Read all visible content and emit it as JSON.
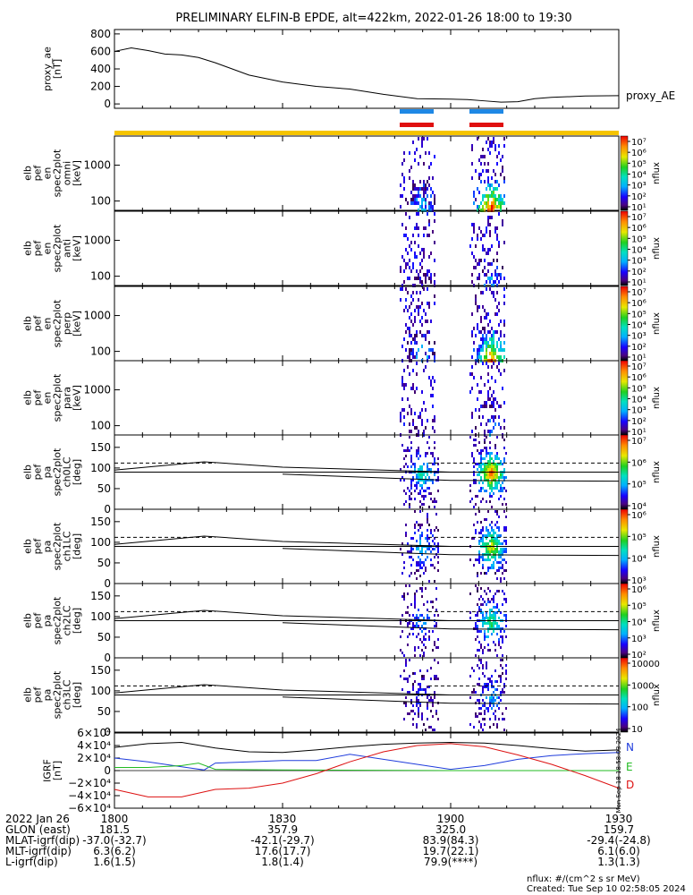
{
  "title": "PRELIMINARY ELFIN-B EPDE, alt=422km, 2022-01-26 18:00 to 19:30",
  "chart_data": [
    {
      "type": "line",
      "ylabel": [
        "proxy_ae",
        "[nT]"
      ],
      "legend": "proxy_AE",
      "yticks": [
        "800",
        "600",
        "400",
        "200",
        "0"
      ],
      "ylim": [
        -50,
        850
      ],
      "x_minutes": [
        0,
        3,
        6,
        9,
        12,
        15,
        18,
        24,
        30,
        36,
        42,
        48,
        54,
        60,
        63,
        66,
        69,
        72,
        75,
        78,
        84,
        90
      ],
      "values": [
        600,
        640,
        610,
        570,
        560,
        530,
        470,
        330,
        250,
        200,
        170,
        110,
        60,
        55,
        50,
        35,
        20,
        25,
        60,
        75,
        90,
        95
      ]
    },
    {
      "type": "heatmap",
      "ylabel": [
        "elb",
        "pef",
        "en",
        "spec2plot",
        "omni",
        "[keV]"
      ],
      "yticks": [
        "1000",
        "100"
      ],
      "ylim": [
        55,
        6500
      ],
      "yscale": "log",
      "colorbar": {
        "label": "nflux",
        "scale": "log",
        "ticks": [
          "10⁷",
          "10⁶",
          "10⁵",
          "10⁴",
          "10³",
          "10²",
          "10¹"
        ]
      }
    },
    {
      "type": "heatmap",
      "ylabel": [
        "elb",
        "pef",
        "en",
        "spec2plot",
        "anti",
        "[keV]"
      ],
      "yticks": [
        "1000",
        "100"
      ],
      "ylim": [
        55,
        6500
      ],
      "yscale": "log",
      "colorbar": {
        "label": "nflux",
        "scale": "log",
        "ticks": [
          "10⁷",
          "10⁶",
          "10⁵",
          "10⁴",
          "10³",
          "10²",
          "10¹"
        ]
      }
    },
    {
      "type": "heatmap",
      "ylabel": [
        "elb",
        "pef",
        "en",
        "spec2plot",
        "perp",
        "[keV]"
      ],
      "yticks": [
        "1000",
        "100"
      ],
      "ylim": [
        55,
        6500
      ],
      "yscale": "log",
      "colorbar": {
        "label": "nflux",
        "scale": "log",
        "ticks": [
          "10⁷",
          "10⁶",
          "10⁵",
          "10⁴",
          "10³",
          "10²",
          "10¹"
        ]
      }
    },
    {
      "type": "heatmap",
      "ylabel": [
        "elb",
        "pef",
        "en",
        "spec2plot",
        "para",
        "[keV]"
      ],
      "yticks": [
        "1000",
        "100"
      ],
      "ylim": [
        55,
        6500
      ],
      "yscale": "log",
      "colorbar": {
        "label": "nflux",
        "scale": "log",
        "ticks": [
          "10⁷",
          "10⁶",
          "10⁵",
          "10⁴",
          "10³",
          "10²",
          "10¹"
        ]
      }
    },
    {
      "type": "heatmap",
      "ylabel": [
        "elb",
        "pef",
        "pa",
        "spec2plot",
        "ch0LC",
        "[deg]"
      ],
      "yticks": [
        "150",
        "100",
        "50",
        "0"
      ],
      "ylim": [
        0,
        180
      ],
      "colorbar": {
        "label": "nflux",
        "scale": "log",
        "ticks": [
          "10⁷",
          "10⁶",
          "10⁵",
          "10⁴"
        ]
      }
    },
    {
      "type": "heatmap",
      "ylabel": [
        "elb",
        "pef",
        "pa",
        "spec2plot",
        "ch1LC",
        "[deg]"
      ],
      "yticks": [
        "150",
        "100",
        "50",
        "0"
      ],
      "ylim": [
        0,
        180
      ],
      "colorbar": {
        "label": "nflux",
        "scale": "log",
        "ticks": [
          "10⁶",
          "10⁵",
          "10⁴",
          "10³"
        ]
      }
    },
    {
      "type": "heatmap",
      "ylabel": [
        "elb",
        "pef",
        "pa",
        "spec2plot",
        "ch2LC",
        "[deg]"
      ],
      "yticks": [
        "150",
        "100",
        "50",
        "0"
      ],
      "ylim": [
        0,
        180
      ],
      "colorbar": {
        "label": "nflux",
        "scale": "log",
        "ticks": [
          "10⁶",
          "10⁵",
          "10⁴",
          "10³",
          "10²"
        ]
      }
    },
    {
      "type": "heatmap",
      "ylabel": [
        "elb",
        "pef",
        "pa",
        "spec2plot",
        "ch3LC",
        "[deg]"
      ],
      "yticks": [
        "150",
        "100",
        "50",
        "0"
      ],
      "ylim": [
        0,
        180
      ],
      "colorbar": {
        "label": "nflux",
        "scale": "linear",
        "ticks": [
          "10000",
          "1000",
          "100",
          "10"
        ]
      }
    },
    {
      "type": "line",
      "ylabel": [
        "IGRF",
        "[nT]"
      ],
      "yticks": [
        "6×10⁴",
        "4×10⁴",
        "2×10⁴",
        "0",
        "−2×10⁴",
        "−4×10⁴",
        "−6×10⁴"
      ],
      "ylim": [
        -60000,
        60000
      ],
      "series": [
        {
          "name": "N",
          "color": "#1f3cdc",
          "x_minutes": [
            0,
            6,
            12,
            16,
            18,
            24,
            30,
            36,
            42,
            48,
            54,
            60,
            66,
            72,
            78,
            84,
            90
          ],
          "values": [
            20000,
            14000,
            6000,
            1000,
            12000,
            14000,
            16000,
            16000,
            26000,
            18000,
            10000,
            2000,
            8000,
            18000,
            24000,
            27000,
            29000
          ]
        },
        {
          "name": "E",
          "color": "#22bb22",
          "x_minutes": [
            0,
            6,
            12,
            15,
            18,
            30,
            60,
            90
          ],
          "values": [
            5000,
            5000,
            8000,
            12000,
            2000,
            1000,
            0,
            0
          ]
        },
        {
          "name": "D",
          "color": "#dd1111",
          "x_minutes": [
            0,
            6,
            12,
            18,
            24,
            30,
            36,
            42,
            48,
            54,
            60,
            66,
            72,
            78,
            84,
            90
          ],
          "values": [
            -30000,
            -42000,
            -42000,
            -30000,
            -28000,
            -20000,
            -5000,
            14000,
            30000,
            40000,
            43000,
            38000,
            25000,
            10000,
            -8000,
            -28000
          ]
        },
        {
          "name": "",
          "color": "#000000",
          "x_minutes": [
            0,
            6,
            12,
            18,
            24,
            30,
            36,
            42,
            48,
            54,
            60,
            66,
            72,
            78,
            84,
            90
          ],
          "values": [
            37000,
            43000,
            45000,
            36000,
            30000,
            29000,
            33000,
            38000,
            42000,
            44000,
            45000,
            44000,
            40000,
            35000,
            31000,
            33000
          ]
        }
      ],
      "legend": [
        "N",
        "E",
        "D"
      ],
      "side_note": "Mon Sep 18 18:58:03 2024"
    }
  ],
  "time_axis": {
    "tick_minutes": [
      0,
      30,
      60,
      90
    ],
    "labels": [
      {
        "name": "2022 Jan 26",
        "values": [
          "1800",
          "1830",
          "1900",
          "1930"
        ]
      },
      {
        "name": "GLON (east)",
        "values": [
          "181.5",
          "357.9",
          "325.0",
          "159.7"
        ]
      },
      {
        "name": "MLAT-igrf(dip)",
        "values": [
          "-37.0(-32.7)",
          "-42.1(-29.7)",
          "83.9(84.3)",
          "-29.4(-24.8)"
        ]
      },
      {
        "name": "MLT-igrf(dip)",
        "values": [
          "6.3(6.2)",
          "17.6(17.7)",
          "19.7(22.1)",
          "6.1(6.0)"
        ]
      },
      {
        "name": "L-igrf(dip)",
        "values": [
          "1.6(1.5)",
          "1.8(1.4)",
          "79.9(****)",
          "1.3(1.3)"
        ]
      }
    ]
  },
  "footer": {
    "units": "nflux: #/(cm^2 s sr MeV)",
    "created": "Created: Tue Sep 10 02:58:05 2024"
  },
  "colors": {
    "blue_bar": "#1e88e5",
    "red_bar": "#e01010",
    "yellow_bar": "#f5c400"
  }
}
